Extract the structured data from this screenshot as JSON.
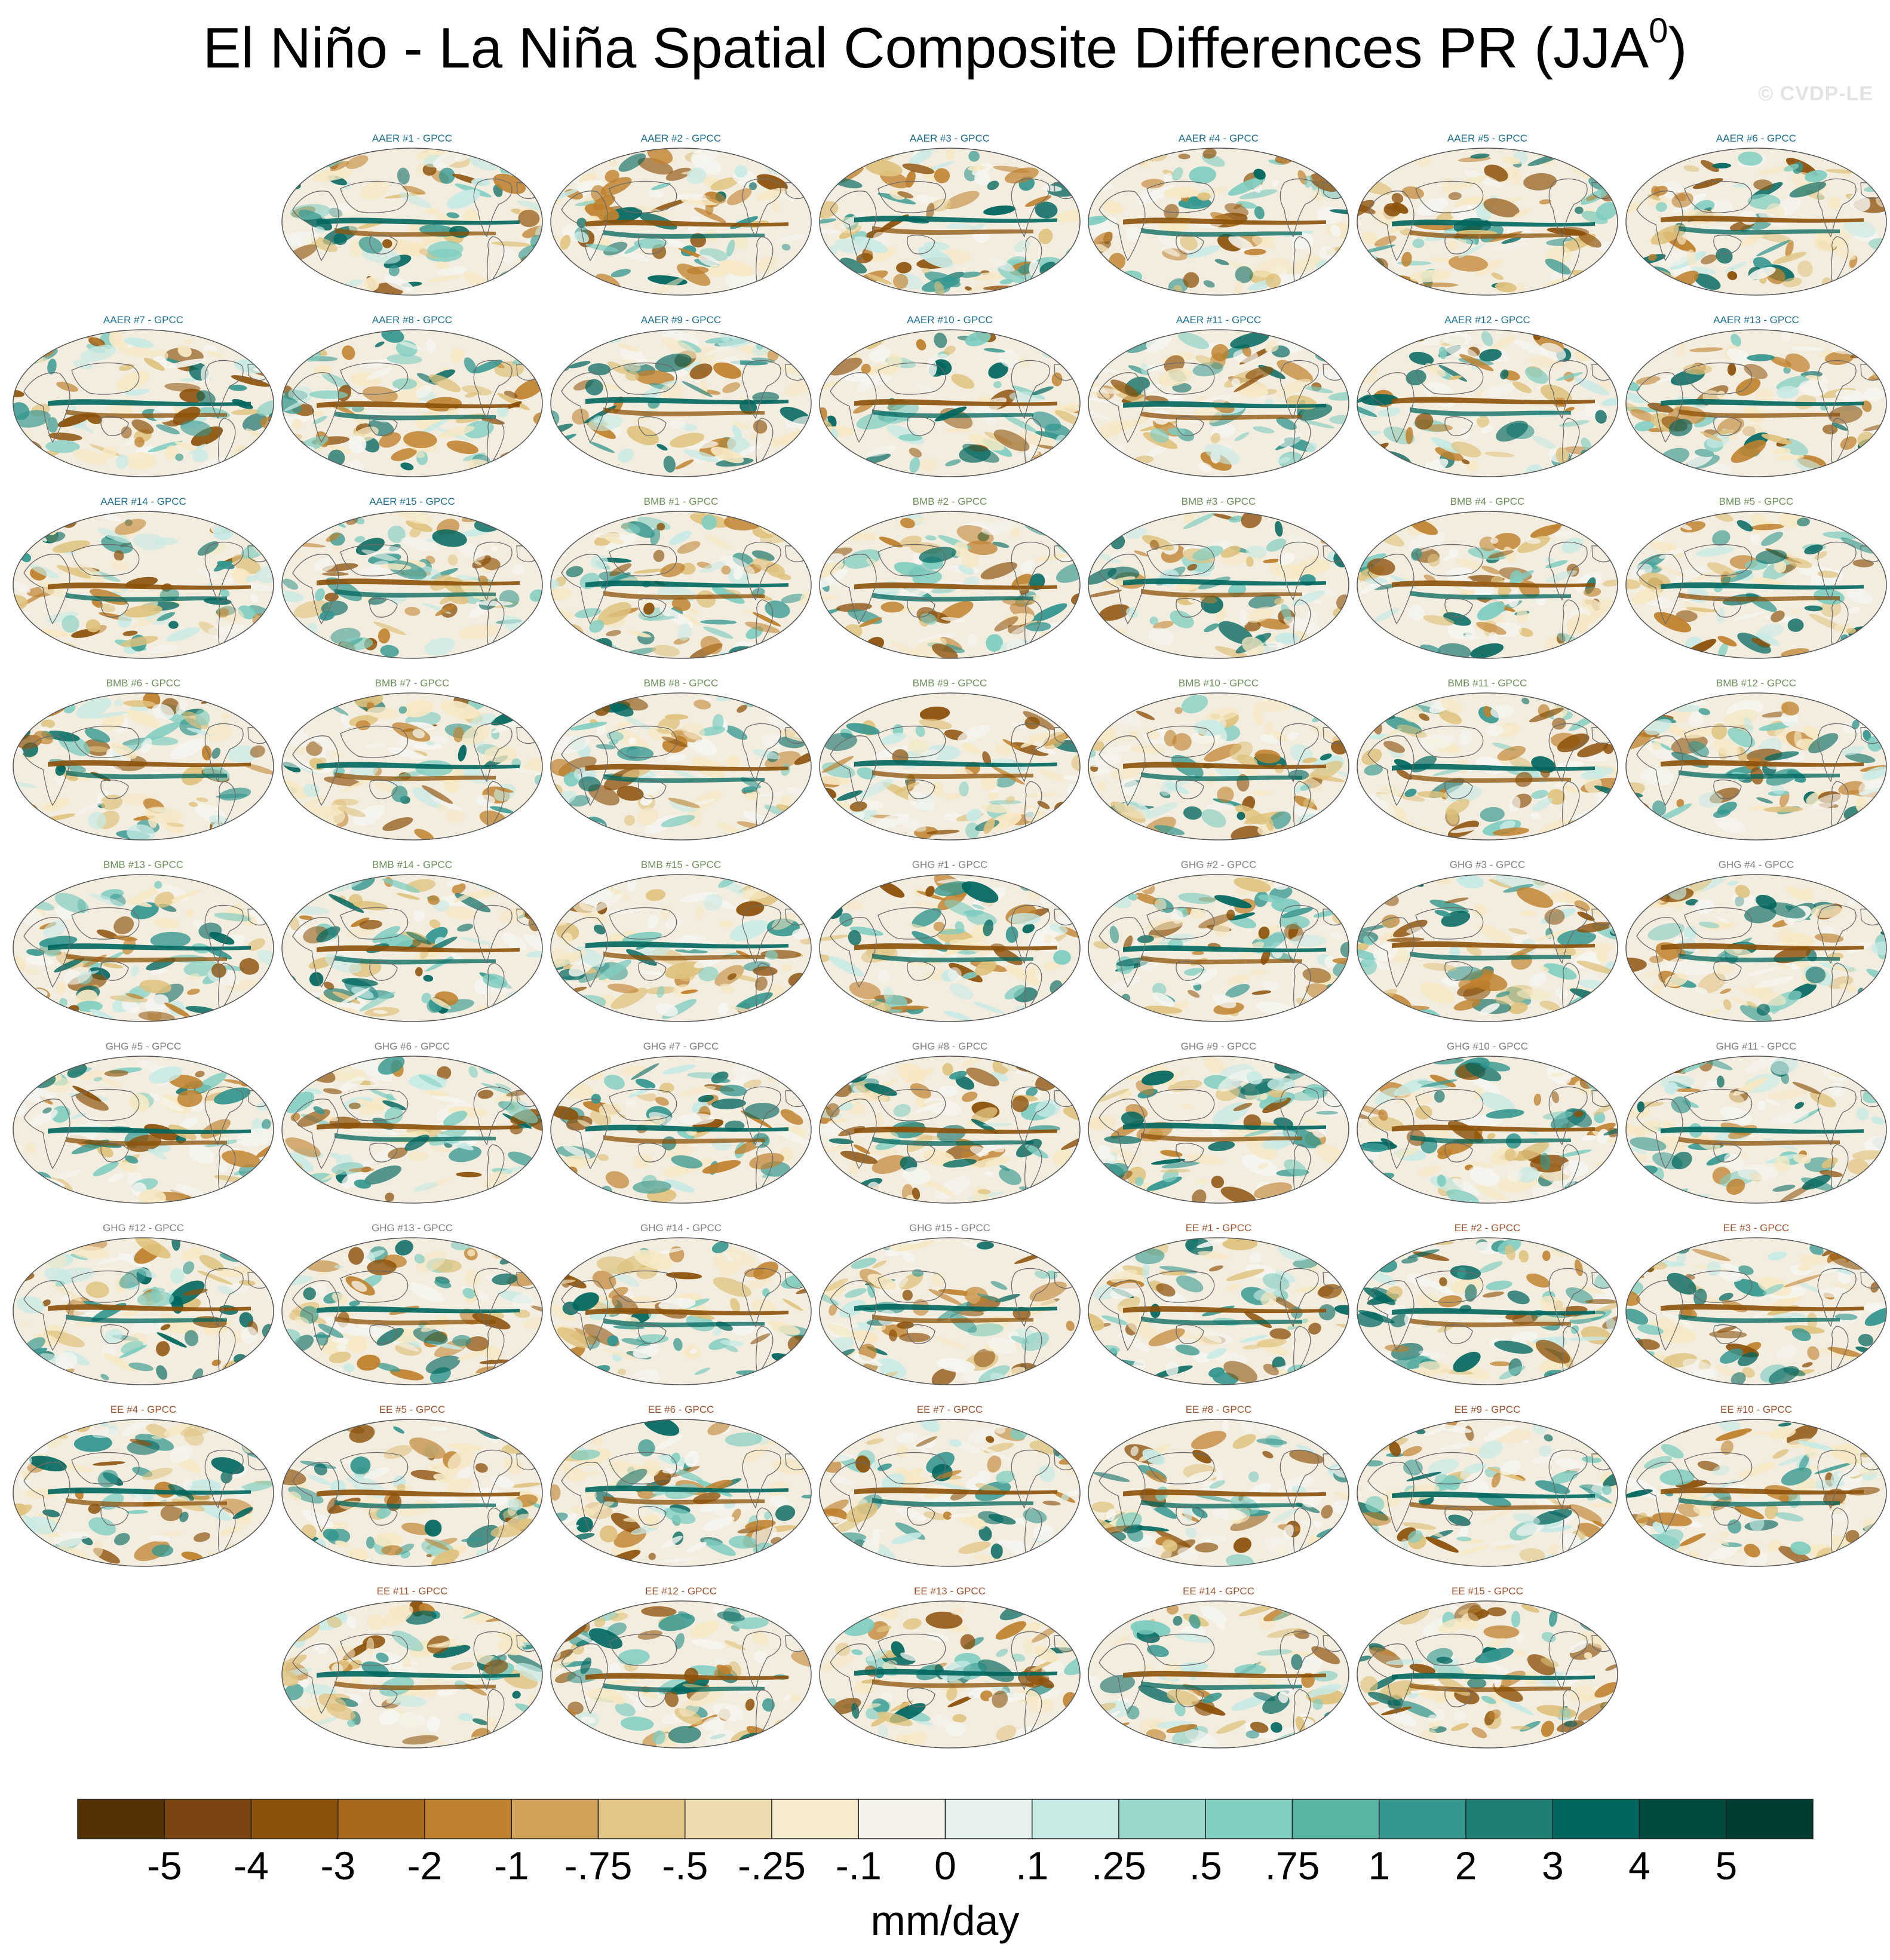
{
  "figure": {
    "title_main": "El Niño - La Niña Spatial Composite Differences PR (JJA",
    "title_sup": "0",
    "title_close": ")",
    "watermark": "© CVDP-LE"
  },
  "groups": {
    "AAER": {
      "color": "#1e6f8f",
      "count": 15
    },
    "BMB": {
      "color": "#6c8f5a",
      "count": 15
    },
    "GHG": {
      "color": "#808080",
      "count": 15
    },
    "EE": {
      "color": "#a0522d",
      "count": 15
    }
  },
  "panel_labels": [
    "AAER #1 - GPCC",
    "AAER #2 - GPCC",
    "AAER #3 - GPCC",
    "AAER #4 - GPCC",
    "AAER #5 - GPCC",
    "AAER #6 - GPCC",
    "AAER #7 - GPCC",
    "AAER #8 - GPCC",
    "AAER #9 - GPCC",
    "AAER #10 - GPCC",
    "AAER #11 - GPCC",
    "AAER #12 - GPCC",
    "AAER #13 - GPCC",
    "AAER #14 - GPCC",
    "AAER #15 - GPCC",
    "BMB #1 - GPCC",
    "BMB #2 - GPCC",
    "BMB #3 - GPCC",
    "BMB #4 - GPCC",
    "BMB #5 - GPCC",
    "BMB #6 - GPCC",
    "BMB #7 - GPCC",
    "BMB #8 - GPCC",
    "BMB #9 - GPCC",
    "BMB #10 - GPCC",
    "BMB #11 - GPCC",
    "BMB #12 - GPCC",
    "BMB #13 - GPCC",
    "BMB #14 - GPCC",
    "BMB #15 - GPCC",
    "GHG #1 - GPCC",
    "GHG #2 - GPCC",
    "GHG #3 - GPCC",
    "GHG #4 - GPCC",
    "GHG #5 - GPCC",
    "GHG #6 - GPCC",
    "GHG #7 - GPCC",
    "GHG #8 - GPCC",
    "GHG #9 - GPCC",
    "GHG #10 - GPCC",
    "GHG #11 - GPCC",
    "GHG #12 - GPCC",
    "GHG #13 - GPCC",
    "GHG #14 - GPCC",
    "GHG #15 - GPCC",
    "EE #1 - GPCC",
    "EE #2 - GPCC",
    "EE #3 - GPCC",
    "EE #4 - GPCC",
    "EE #5 - GPCC",
    "EE #6 - GPCC",
    "EE #7 - GPCC",
    "EE #8 - GPCC",
    "EE #9 - GPCC",
    "EE #10 - GPCC",
    "EE #11 - GPCC",
    "EE #12 - GPCC",
    "EE #13 - GPCC",
    "EE #14 - GPCC",
    "EE #15 - GPCC"
  ],
  "colorbar": {
    "unit": "mm/day",
    "tick_labels": [
      "-5",
      "-4",
      "-3",
      "-2",
      "-1",
      "-.75",
      "-.5",
      "-.25",
      "-.1",
      "0",
      ".1",
      ".25",
      ".5",
      ".75",
      "1",
      "2",
      "3",
      "4",
      "5"
    ],
    "colors": [
      "#543005",
      "#7a4510",
      "#8c510a",
      "#a8691d",
      "#bf812d",
      "#d0a25a",
      "#e3c585",
      "#efdcae",
      "#f6ebcf",
      "#f5f2ec",
      "#e6f0ef",
      "#c7eae5",
      "#99d8cb",
      "#80cdc1",
      "#5ab4a4",
      "#35978f",
      "#1f7f75",
      "#01665e",
      "#014a40",
      "#003c30"
    ]
  }
}
